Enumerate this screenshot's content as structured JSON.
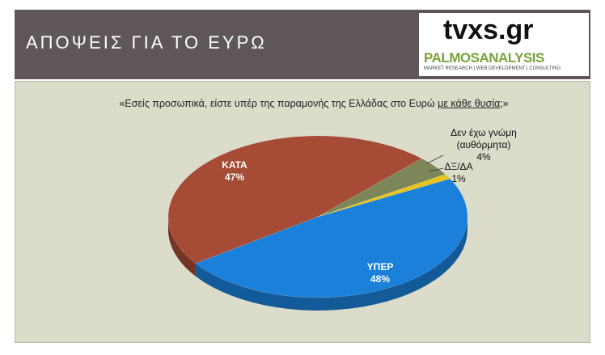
{
  "header": {
    "title": "ΑΠΟΨΕΙΣ ΓΙΑ ΤΟ ΕΥΡΩ",
    "logo_top": "tvxs.gr",
    "logo_bottom": "PALMOSANALYSIS",
    "logo_tagline": "MARKET RESEARCH | WEB DEVELOPMENT | CONSULTING"
  },
  "chart_data": {
    "type": "pie",
    "title": [
      "«Εσείς προσωπικά, είστε υπέρ της παραμονής της Ελλάδας στο Ευρώ ",
      "με κάθε θυσία",
      ";»"
    ],
    "categories": [
      "ΥΠΕΡ",
      "ΚΑΤΑ",
      "Δεν έχω γνώμη (αυθόρμητα)",
      "ΔΞ/ΔΑ"
    ],
    "values": [
      48,
      47,
      4,
      1
    ],
    "value_labels": [
      "48%",
      "47%",
      "4%",
      "1%"
    ],
    "colors": [
      "#1b80d9",
      "#a64b36",
      "#7c8658",
      "#e6c41c"
    ]
  }
}
